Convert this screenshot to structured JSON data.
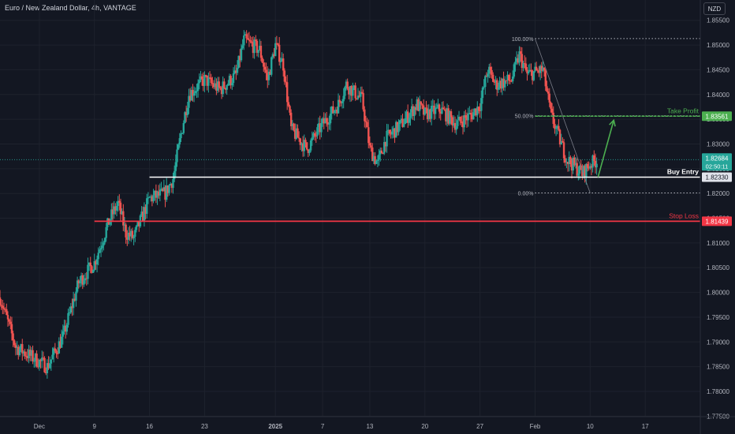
{
  "header": {
    "symbol_title": "Euro / New Zealand Dollar, 4h, VANTAGE",
    "currency": "NZD"
  },
  "colors": {
    "background": "#131722",
    "up": "#26a69a",
    "down": "#ef5350",
    "grid": "#1e222d",
    "axis_text": "#b2b5be",
    "take_profit": "#4caf50",
    "buy_entry": "#ffffff",
    "stop_loss": "#f23645",
    "current_price": "#26a69a"
  },
  "chart_data": {
    "type": "candlestick",
    "y_axis": {
      "range": [
        1.7749,
        1.8591
      ],
      "ticks": [
        1.855,
        1.85,
        1.845,
        1.84,
        1.835,
        1.83,
        1.825,
        1.82,
        1.815,
        1.81,
        1.805,
        1.8,
        1.795,
        1.79,
        1.785,
        1.78,
        1.775
      ],
      "tick_labels": [
        "1.85500",
        "1.85000",
        "1.84500",
        "1.84000",
        "1.83500",
        "1.83000",
        "1.82500",
        "1.82000",
        "1.81500",
        "1.81000",
        "1.80500",
        "1.80000",
        "1.79500",
        "1.79000",
        "1.78500",
        "1.78000",
        "1.77500"
      ]
    },
    "x_axis": {
      "labels": [
        {
          "label": "Dec",
          "date": "2024-12-02"
        },
        {
          "label": "9",
          "date": "2024-12-09"
        },
        {
          "label": "16",
          "date": "2024-12-16"
        },
        {
          "label": "23",
          "date": "2024-12-23"
        },
        {
          "label": "2025",
          "date": "2025-01-01",
          "bold": true
        },
        {
          "label": "7",
          "date": "2025-01-07"
        },
        {
          "label": "13",
          "date": "2025-01-13"
        },
        {
          "label": "20",
          "date": "2025-01-20"
        },
        {
          "label": "27",
          "date": "2025-01-27"
        },
        {
          "label": "Feb",
          "date": "2025-02-03"
        },
        {
          "label": "10",
          "date": "2025-02-10"
        },
        {
          "label": "17",
          "date": "2025-02-17"
        }
      ],
      "range": [
        "2024-11-27",
        "2025-02-24"
      ]
    },
    "path_anchors": [
      {
        "date": "2024-11-27",
        "price": 1.799
      },
      {
        "date": "2024-11-29",
        "price": 1.789
      },
      {
        "date": "2024-12-02",
        "price": 1.786
      },
      {
        "date": "2024-12-03",
        "price": 1.785
      },
      {
        "date": "2024-12-05",
        "price": 1.791
      },
      {
        "date": "2024-12-07",
        "price": 1.802
      },
      {
        "date": "2024-12-09",
        "price": 1.806
      },
      {
        "date": "2024-12-11",
        "price": 1.815
      },
      {
        "date": "2024-12-12",
        "price": 1.818
      },
      {
        "date": "2024-12-13",
        "price": 1.812
      },
      {
        "date": "2024-12-14",
        "price": 1.811
      },
      {
        "date": "2024-12-16",
        "price": 1.819
      },
      {
        "date": "2024-12-18",
        "price": 1.82
      },
      {
        "date": "2024-12-19",
        "price": 1.823
      },
      {
        "date": "2024-12-20",
        "price": 1.832
      },
      {
        "date": "2024-12-21",
        "price": 1.84
      },
      {
        "date": "2024-12-23",
        "price": 1.843
      },
      {
        "date": "2024-12-25",
        "price": 1.841
      },
      {
        "date": "2024-12-27",
        "price": 1.844
      },
      {
        "date": "2024-12-28",
        "price": 1.851
      },
      {
        "date": "2024-12-30",
        "price": 1.849
      },
      {
        "date": "2024-12-31",
        "price": 1.843
      },
      {
        "date": "2025-01-01",
        "price": 1.85
      },
      {
        "date": "2025-01-02",
        "price": 1.846
      },
      {
        "date": "2025-01-03",
        "price": 1.833
      },
      {
        "date": "2025-01-05",
        "price": 1.829
      },
      {
        "date": "2025-01-07",
        "price": 1.834
      },
      {
        "date": "2025-01-09",
        "price": 1.838
      },
      {
        "date": "2025-01-10",
        "price": 1.842
      },
      {
        "date": "2025-01-12",
        "price": 1.839
      },
      {
        "date": "2025-01-13",
        "price": 1.829
      },
      {
        "date": "2025-01-14",
        "price": 1.826
      },
      {
        "date": "2025-01-15",
        "price": 1.831
      },
      {
        "date": "2025-01-17",
        "price": 1.834
      },
      {
        "date": "2025-01-19",
        "price": 1.838
      },
      {
        "date": "2025-01-20",
        "price": 1.836
      },
      {
        "date": "2025-01-22",
        "price": 1.837
      },
      {
        "date": "2025-01-24",
        "price": 1.834
      },
      {
        "date": "2025-01-26",
        "price": 1.836
      },
      {
        "date": "2025-01-27",
        "price": 1.838
      },
      {
        "date": "2025-01-28",
        "price": 1.845
      },
      {
        "date": "2025-01-29",
        "price": 1.842
      },
      {
        "date": "2025-01-31",
        "price": 1.843
      },
      {
        "date": "2025-02-01",
        "price": 1.848
      },
      {
        "date": "2025-02-02",
        "price": 1.844
      },
      {
        "date": "2025-02-04",
        "price": 1.845
      },
      {
        "date": "2025-02-05",
        "price": 1.836
      },
      {
        "date": "2025-02-07",
        "price": 1.827
      },
      {
        "date": "2025-02-09",
        "price": 1.824
      },
      {
        "date": "2025-02-10",
        "price": 1.826
      },
      {
        "date": "2025-02-11",
        "price": 1.8268
      }
    ],
    "price_line": {
      "value": 1.82684,
      "label": "1.82684",
      "countdown": "02:50:11"
    },
    "levels": [
      {
        "name": "Take Profit",
        "value": 1.83561,
        "label": "1.83561",
        "start": "2025-02-03"
      },
      {
        "name": "Buy Entry",
        "value": 1.8233,
        "label": "1.82330",
        "start": "2024-12-16"
      },
      {
        "name": "Stop Loss",
        "value": 1.81439,
        "label": "1.81439",
        "start": "2024-12-09"
      }
    ],
    "fibonacci": {
      "start": "2025-02-03",
      "levels": [
        {
          "label": "100.00%",
          "value": 1.8513
        },
        {
          "label": "50.00%",
          "value": 1.8357
        },
        {
          "label": "0.00%",
          "value": 1.8201
        }
      ]
    },
    "arrow": {
      "from": {
        "date": "2025-02-11",
        "price": 1.8233
      },
      "to": {
        "date": "2025-02-13",
        "price": 1.8348
      }
    }
  }
}
